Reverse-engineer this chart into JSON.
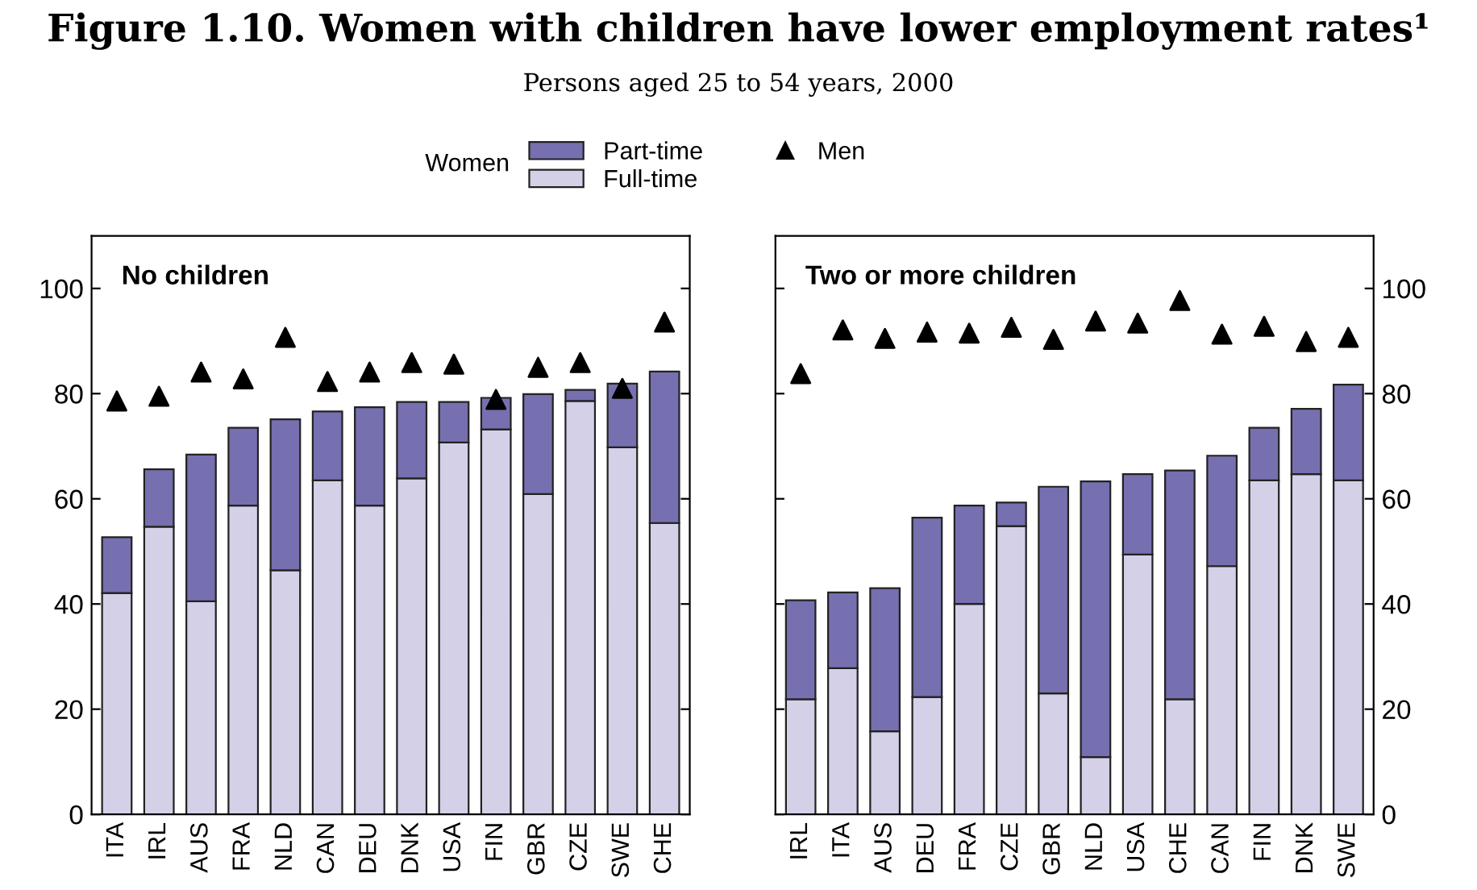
{
  "chart_data": [
    {
      "type": "bar",
      "title": "Figure 1.10. Women with children have lower employment rates¹",
      "subtitle": "Persons aged 25 to 54 years, 2000",
      "legend_title": "Women",
      "legend": "top",
      "stacked": true,
      "annotations": [
        "No children"
      ],
      "categories": [
        "ITA",
        "IRL",
        "AUS",
        "FRA",
        "NLD",
        "CAN",
        "DEU",
        "DNK",
        "USA",
        "FIN",
        "GBR",
        "CZE",
        "SWE",
        "CHE"
      ],
      "series": [
        {
          "name": "Full-time",
          "color": "#d4d0e8",
          "values": [
            42.1,
            54.7,
            40.5,
            58.7,
            46.4,
            63.5,
            58.7,
            63.9,
            70.7,
            73.2,
            60.9,
            78.6,
            69.8,
            55.4
          ]
        },
        {
          "name": "Part-time",
          "color": "#7670b0",
          "values": [
            10.6,
            10.9,
            27.9,
            14.8,
            28.7,
            13.1,
            18.7,
            14.5,
            7.7,
            6.0,
            19.0,
            2.1,
            12.1,
            28.8
          ]
        },
        {
          "name": "Men",
          "type": "scatter",
          "marker": "triangle",
          "color": "#000000",
          "x": [
            "ITA",
            "IRL",
            "AUS",
            "FRA",
            "NLD",
            "CAN",
            "DEU",
            "DNK",
            "USA",
            "FIN",
            "GBR",
            "CZE",
            "SWE",
            "CHE"
          ],
          "values": [
            78.6,
            79.5,
            84.1,
            82.8,
            90.7,
            82.3,
            84.1,
            85.9,
            85.6,
            78.9,
            85.0,
            85.9,
            81.0,
            93.6
          ]
        }
      ],
      "ylim": [
        0,
        110
      ],
      "yticks": [
        0,
        20,
        40,
        60,
        80,
        100
      ]
    },
    {
      "type": "bar",
      "stacked": true,
      "annotations": [
        "Two or more children"
      ],
      "categories": [
        "IRL",
        "ITA",
        "AUS",
        "DEU",
        "FRA",
        "CZE",
        "GBR",
        "NLD",
        "USA",
        "CHE",
        "CAN",
        "FIN",
        "DNK",
        "SWE"
      ],
      "series": [
        {
          "color": "#d4d0e8",
          "values": [
            21.9,
            27.8,
            15.8,
            22.3,
            40.0,
            54.8,
            23.0,
            10.9,
            49.4,
            21.9,
            47.2,
            63.5,
            64.7,
            63.5
          ]
        },
        {
          "color": "#7670b0",
          "values": [
            18.8,
            14.4,
            27.2,
            34.1,
            18.7,
            4.5,
            39.3,
            52.4,
            15.3,
            43.5,
            21.0,
            10.0,
            12.4,
            18.2
          ]
        },
        {
          "type": "scatter",
          "marker": "triangle",
          "color": "#000000",
          "x": [
            "IRL",
            "ITA",
            "AUS",
            "DEU",
            "FRA",
            "CZE",
            "GBR",
            "NLD",
            "USA",
            "CHE",
            "CAN",
            "FIN",
            "DNK",
            "SWE"
          ],
          "values": [
            83.8,
            92.1,
            90.5,
            91.7,
            91.5,
            92.6,
            90.3,
            93.8,
            93.4,
            97.7,
            91.3,
            92.8,
            89.9,
            90.7
          ]
        }
      ],
      "ylim": [
        0,
        110
      ],
      "yticks": [
        0,
        20,
        40,
        60,
        80,
        100
      ]
    }
  ]
}
